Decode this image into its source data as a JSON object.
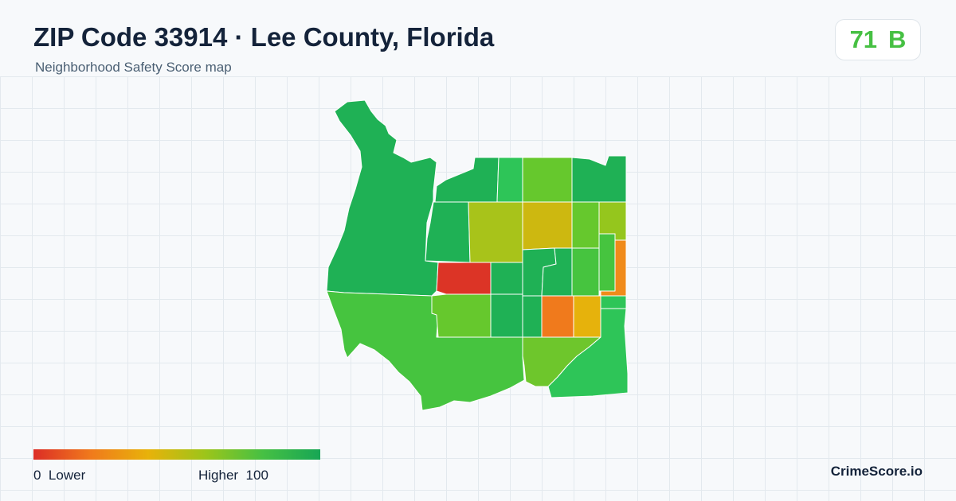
{
  "header": {
    "title": "ZIP Code 33914 · Lee County, Florida",
    "subtitle": "Neighborhood Safety Score map"
  },
  "score": {
    "value": "71",
    "grade": "B",
    "color": "#46c043"
  },
  "legend": {
    "low_value": "0",
    "low_label": "Lower",
    "high_label": "Higher",
    "high_value": "100",
    "gradient_colors": [
      "#dc2d26",
      "#f07a1c",
      "#e8b20a",
      "#9cc51a",
      "#46c043",
      "#17a655"
    ]
  },
  "brand": "CrimeScore.io",
  "map": {
    "regions": [
      {
        "name": "region-west-coast",
        "color": "#1fb155"
      },
      {
        "name": "region-southwest",
        "color": "#46c43f"
      },
      {
        "name": "region-north-1",
        "color": "#1fb155"
      },
      {
        "name": "region-north-2",
        "color": "#2ec558"
      },
      {
        "name": "region-north-3",
        "color": "#66c82d"
      },
      {
        "name": "region-north-4",
        "color": "#1fb155"
      },
      {
        "name": "region-northeast-strip",
        "color": "#1fb155"
      },
      {
        "name": "region-mid-west",
        "color": "#a8c31a"
      },
      {
        "name": "region-mid-center",
        "color": "#cdb810"
      },
      {
        "name": "region-mid-3",
        "color": "#66c82d"
      },
      {
        "name": "region-mid-4",
        "color": "#95c61d"
      },
      {
        "name": "region-east-1",
        "color": "#46c43f"
      },
      {
        "name": "region-east-orange",
        "color": "#f08b1a"
      },
      {
        "name": "region-east-red",
        "color": "#dc3426"
      },
      {
        "name": "region-center-1",
        "color": "#1fb155"
      },
      {
        "name": "region-center-2",
        "color": "#1fb155"
      },
      {
        "name": "region-center-3",
        "color": "#1fb155"
      },
      {
        "name": "region-center-4",
        "color": "#46c43f"
      },
      {
        "name": "region-center-5",
        "color": "#66c82d"
      },
      {
        "name": "region-lower-1",
        "color": "#1fb155"
      },
      {
        "name": "region-lower-2",
        "color": "#1fb155"
      },
      {
        "name": "region-lower-orange",
        "color": "#f07a1c"
      },
      {
        "name": "region-lower-amber",
        "color": "#e6b20c"
      },
      {
        "name": "region-lower-green",
        "color": "#2ec558"
      },
      {
        "name": "region-east-small",
        "color": "#6ec62c"
      },
      {
        "name": "region-south-1",
        "color": "#2ec558"
      },
      {
        "name": "region-southeast",
        "color": "#1fb155"
      }
    ]
  }
}
